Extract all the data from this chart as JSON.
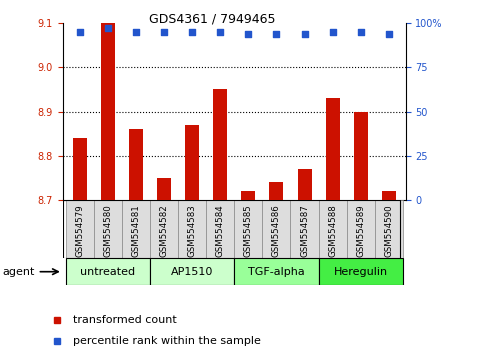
{
  "title": "GDS4361 / 7949465",
  "samples": [
    "GSM554579",
    "GSM554580",
    "GSM554581",
    "GSM554582",
    "GSM554583",
    "GSM554584",
    "GSM554585",
    "GSM554586",
    "GSM554587",
    "GSM554588",
    "GSM554589",
    "GSM554590"
  ],
  "transformed_counts": [
    8.84,
    9.1,
    8.86,
    8.75,
    8.87,
    8.95,
    8.72,
    8.74,
    8.77,
    8.93,
    8.9,
    8.72
  ],
  "percentile_ranks": [
    95,
    97,
    95,
    95,
    95,
    95,
    94,
    94,
    94,
    95,
    95,
    94
  ],
  "ylim_left": [
    8.7,
    9.1
  ],
  "ylim_right": [
    0,
    100
  ],
  "yticks_left": [
    8.7,
    8.8,
    8.9,
    9.0,
    9.1
  ],
  "yticks_right": [
    0,
    25,
    50,
    75,
    100
  ],
  "ytick_labels_right": [
    "0",
    "25",
    "50",
    "75",
    "100%"
  ],
  "grid_values": [
    8.8,
    8.9,
    9.0
  ],
  "bar_color": "#cc1100",
  "dot_color": "#2255cc",
  "bar_bottom": 8.7,
  "agent_groups": [
    {
      "label": "untreated",
      "start": 0,
      "end": 2,
      "color": "#ccffcc"
    },
    {
      "label": "AP1510",
      "start": 3,
      "end": 5,
      "color": "#ccffcc"
    },
    {
      "label": "TGF-alpha",
      "start": 6,
      "end": 8,
      "color": "#99ff99"
    },
    {
      "label": "Heregulin",
      "start": 9,
      "end": 11,
      "color": "#44ee44"
    }
  ],
  "legend_bar_label": "transformed count",
  "legend_dot_label": "percentile rank within the sample",
  "xlabel_agent": "agent",
  "tick_label_color_left": "#cc2200",
  "tick_label_color_right": "#2255cc",
  "sample_box_color": "#dddddd",
  "title_fontsize": 9,
  "bar_fontsize": 7,
  "legend_fontsize": 8
}
